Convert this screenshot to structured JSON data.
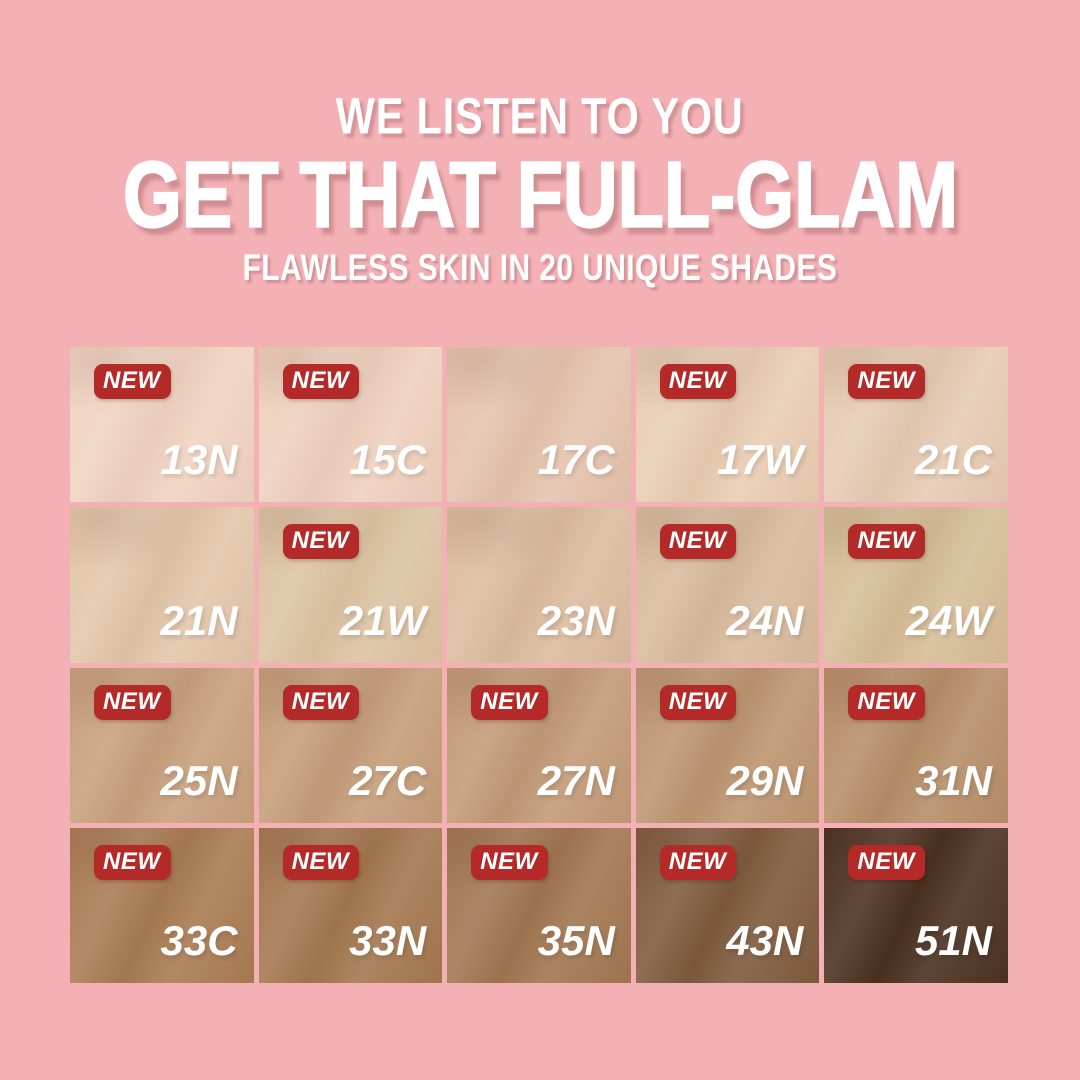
{
  "page": {
    "background_color": "#f3b1b5"
  },
  "header": {
    "tagline": "WE LISTEN TO YOU",
    "title": "GET THAT FULL-GLAM",
    "subtitle": "FLAWLESS SKIN IN 20 UNIQUE SHADES"
  },
  "new_badge": {
    "label": "NEW",
    "background_color": "#b42a28",
    "text_color": "#ffffff"
  },
  "shade_grid": {
    "rows": 4,
    "columns": 5,
    "shades": [
      {
        "code": "13N",
        "color": "#f1d3c1",
        "is_new": true
      },
      {
        "code": "15C",
        "color": "#efd0bd",
        "is_new": true
      },
      {
        "code": "17C",
        "color": "#e5c3ad",
        "is_new": false
      },
      {
        "code": "17W",
        "color": "#e9cdb2",
        "is_new": true
      },
      {
        "code": "21C",
        "color": "#e7cbb3",
        "is_new": true
      },
      {
        "code": "21N",
        "color": "#e3c6a9",
        "is_new": false
      },
      {
        "code": "21W",
        "color": "#ddc3a2",
        "is_new": true
      },
      {
        "code": "23N",
        "color": "#dcbc9e",
        "is_new": false
      },
      {
        "code": "24N",
        "color": "#d9bb9d",
        "is_new": true
      },
      {
        "code": "24W",
        "color": "#d6bd96",
        "is_new": true
      },
      {
        "code": "25N",
        "color": "#c8a07c",
        "is_new": true
      },
      {
        "code": "27C",
        "color": "#c59d79",
        "is_new": true
      },
      {
        "code": "27N",
        "color": "#c29a76",
        "is_new": true
      },
      {
        "code": "29N",
        "color": "#bd9570",
        "is_new": true
      },
      {
        "code": "31N",
        "color": "#b78e68",
        "is_new": true
      },
      {
        "code": "33C",
        "color": "#a97b51",
        "is_new": true
      },
      {
        "code": "33N",
        "color": "#a4774e",
        "is_new": true
      },
      {
        "code": "35N",
        "color": "#a1764f",
        "is_new": true
      },
      {
        "code": "43N",
        "color": "#7e5a3c",
        "is_new": true
      },
      {
        "code": "51N",
        "color": "#4a3020",
        "is_new": true
      }
    ]
  }
}
